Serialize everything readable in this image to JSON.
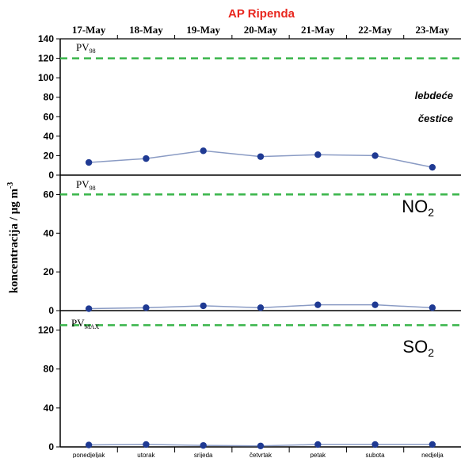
{
  "title": "AP Ripenda",
  "ylabel": "koncentracija / μg m",
  "ylabel_sup": "-3",
  "dates": [
    "17-May",
    "18-May",
    "19-May",
    "20-May",
    "21-May",
    "22-May",
    "23-May"
  ],
  "days": [
    "ponedjeljak",
    "utorak",
    "srijeda",
    "četvrtak",
    "petak",
    "subota",
    "nedjelja"
  ],
  "colors": {
    "title": "#e8261e",
    "limit": "#39b54a",
    "series_line": "#8a9bc4",
    "series_marker": "#1f3a93",
    "axis": "#000000"
  },
  "chart_data": [
    {
      "type": "line",
      "label_line1": "lebdeće",
      "label_line2": "čestice",
      "limit_label": "PV",
      "limit_sub": "98",
      "limit_value": 120,
      "ylim": [
        0,
        140
      ],
      "yticks": [
        0,
        20,
        40,
        60,
        80,
        100,
        120,
        140
      ],
      "values": [
        13,
        17,
        25,
        19,
        21,
        20,
        8
      ]
    },
    {
      "type": "line",
      "label_main": "NO",
      "label_sub": "2",
      "limit_label": "PV",
      "limit_sub": "98",
      "limit_value": 60,
      "ylim": [
        0,
        70
      ],
      "yticks": [
        0,
        20,
        40,
        60
      ],
      "values": [
        1,
        1.5,
        2.5,
        1.5,
        3,
        3,
        1.5
      ]
    },
    {
      "type": "line",
      "label_main": "SO",
      "label_sub": "2",
      "limit_label": "PV",
      "limit_sub": "MAX",
      "limit_value": 125,
      "ylim": [
        0,
        140
      ],
      "yticks": [
        0,
        40,
        80,
        120
      ],
      "values": [
        2,
        2.5,
        1.5,
        1,
        2.5,
        2.5,
        2.5
      ]
    }
  ]
}
